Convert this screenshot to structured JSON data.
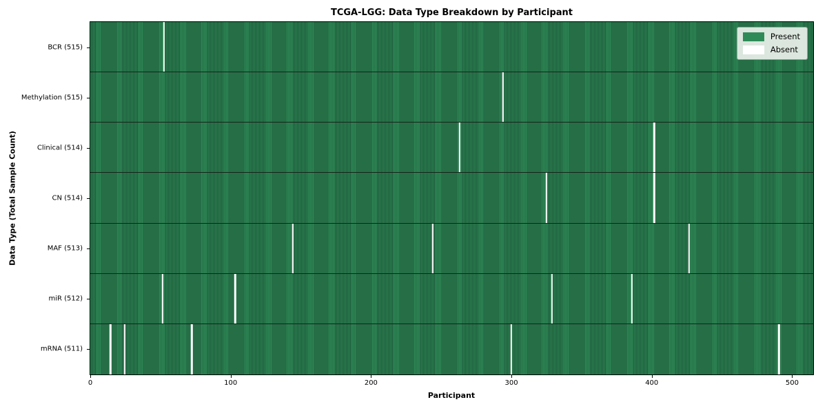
{
  "chart_data": {
    "type": "heatmap",
    "title": "TCGA-LGG: Data Type Breakdown by Participant",
    "xlabel": "Participant",
    "ylabel": "Data Type (Total Sample Count)",
    "n_participants": 516,
    "x_range": [
      0,
      516
    ],
    "x_ticks": [
      0,
      100,
      200,
      300,
      400,
      500
    ],
    "grid": false,
    "colors": {
      "present_fill": "#2e8b57",
      "present_edge": "#1c5236",
      "absent_fill": "#ffffff",
      "row_separator": "#15231a"
    },
    "legend": {
      "position": "upper right",
      "entries": [
        {
          "label": "Present",
          "color": "#2e8b57"
        },
        {
          "label": "Absent",
          "color": "#ffffff"
        }
      ]
    },
    "rows": [
      {
        "label": "BCR (515)",
        "name": "bcr",
        "present_count": 515,
        "absent_participants": [
          52
        ]
      },
      {
        "label": "Methylation (515)",
        "name": "methylation",
        "present_count": 515,
        "absent_participants": [
          294
        ]
      },
      {
        "label": "Clinical (514)",
        "name": "clinical",
        "present_count": 514,
        "absent_participants": [
          263,
          402
        ]
      },
      {
        "label": "CN (514)",
        "name": "cn",
        "present_count": 514,
        "absent_participants": [
          325,
          402
        ]
      },
      {
        "label": "MAF (513)",
        "name": "maf",
        "present_count": 513,
        "absent_participants": [
          144,
          244,
          427
        ]
      },
      {
        "label": "miR (512)",
        "name": "mir",
        "present_count": 512,
        "absent_participants": [
          51,
          103,
          329,
          386
        ]
      },
      {
        "label": "mRNA (511)",
        "name": "mrna",
        "present_count": 511,
        "absent_participants": [
          14,
          24,
          72,
          300,
          491
        ]
      }
    ]
  }
}
